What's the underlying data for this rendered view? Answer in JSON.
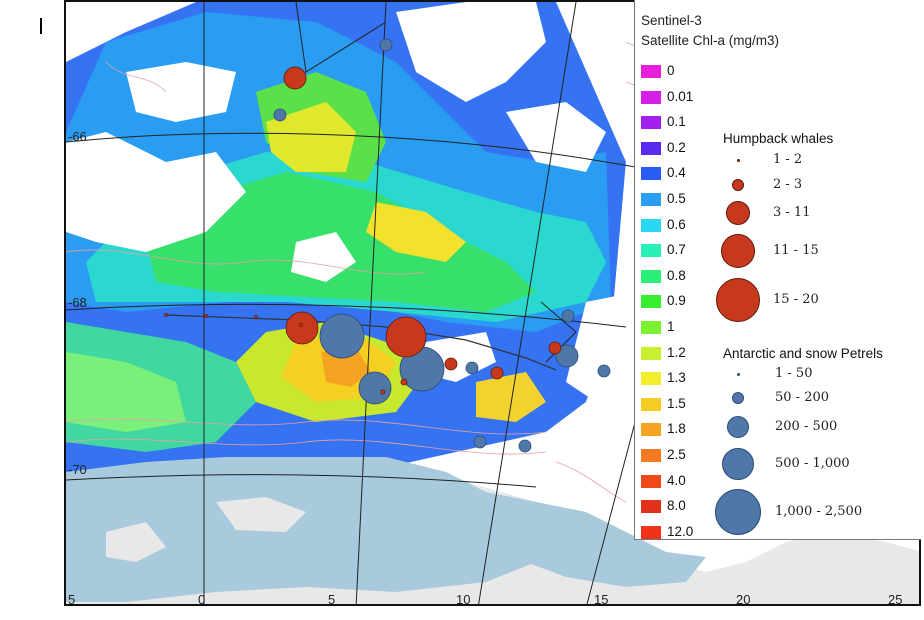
{
  "map": {
    "lat_labels": [
      "-66",
      "-68",
      "-70"
    ],
    "lon_labels": [
      "5",
      "0",
      "5",
      "10",
      "15",
      "20",
      "25"
    ]
  },
  "legend": {
    "chl_title_line1": "Sentinel-3",
    "chl_title_line2": "Satellite Chl-a (mg/m3)",
    "chl_classes": [
      {
        "label": "0",
        "color": "#e81fd8"
      },
      {
        "label": "0.01",
        "color": "#d41fe6"
      },
      {
        "label": "0.1",
        "color": "#a21fee"
      },
      {
        "label": "0.2",
        "color": "#5a2af0"
      },
      {
        "label": "0.4",
        "color": "#2a5cf5"
      },
      {
        "label": "0.5",
        "color": "#2a9cf2"
      },
      {
        "label": "0.6",
        "color": "#2ad8f2"
      },
      {
        "label": "0.7",
        "color": "#2af0b8"
      },
      {
        "label": "0.8",
        "color": "#2af07a"
      },
      {
        "label": "0.9",
        "color": "#36f02e"
      },
      {
        "label": "1",
        "color": "#7af02e"
      },
      {
        "label": "1.2",
        "color": "#c8f02e"
      },
      {
        "label": "1.3",
        "color": "#f2ee2e"
      },
      {
        "label": "1.5",
        "color": "#f5cc22"
      },
      {
        "label": "1.8",
        "color": "#f5a422"
      },
      {
        "label": "2.5",
        "color": "#f57a22"
      },
      {
        "label": "4.0",
        "color": "#f04a1a"
      },
      {
        "label": "8.0",
        "color": "#e0321a"
      },
      {
        "label": "12.0",
        "color": "#f0321a"
      }
    ],
    "whales_title": "Humpback whales",
    "whale_classes": [
      "1 - 2",
      "2 - 3",
      "3 - 11",
      "11 - 15",
      "15 - 20"
    ],
    "whale_color": "#c8381c",
    "petrels_title": "Antarctic and snow Petrels",
    "petrel_classes": [
      "1 - 50",
      "50 - 200",
      "200 - 500",
      "500 - 1,000",
      "1,000 - 2,500"
    ],
    "petrel_color": "#4f78a8"
  },
  "colors": {
    "land": "#e8e8e8",
    "ice_shelf": "#a9c9dc",
    "contour": "#e8a0a0",
    "cloud": "#ffffff"
  }
}
